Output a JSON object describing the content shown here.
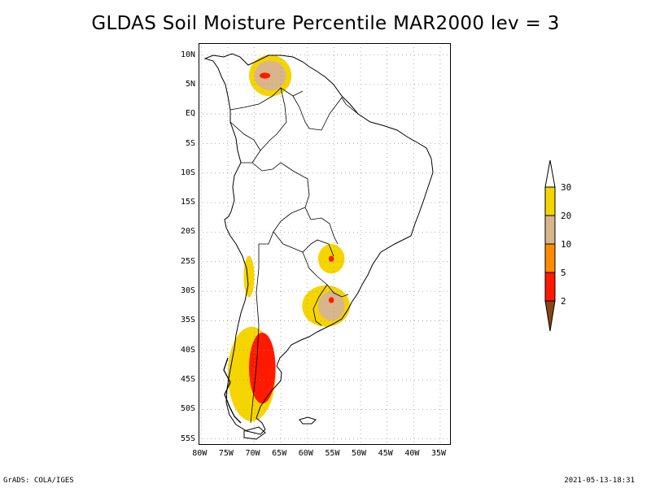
{
  "title": "GLDAS Soil Moisture Percentile MAR2000 lev = 3",
  "footer": {
    "left": "GrADS: COLA/IGES",
    "right": "2021-05-13-18:31"
  },
  "axes": {
    "lat_labels": [
      "10N",
      "5N",
      "EQ",
      "5S",
      "10S",
      "15S",
      "20S",
      "25S",
      "30S",
      "35S",
      "40S",
      "45S",
      "50S",
      "55S"
    ],
    "lon_labels": [
      "80W",
      "75W",
      "70W",
      "65W",
      "60W",
      "55W",
      "50W",
      "45W",
      "40W",
      "35W"
    ],
    "lat_values": [
      10,
      5,
      0,
      -5,
      -10,
      -15,
      -20,
      -25,
      -30,
      -35,
      -40,
      -45,
      -50,
      -55
    ],
    "lon_values": [
      -80,
      -75,
      -70,
      -65,
      -60,
      -55,
      -50,
      -45,
      -40,
      -35
    ],
    "lat_range": [
      -56,
      12
    ],
    "lon_range": [
      -80.5,
      -33
    ],
    "grid": true
  },
  "legend": {
    "placement": "right",
    "levels": [
      "30",
      "20",
      "10",
      "5",
      "2"
    ],
    "colors": {
      "above_30": "#ffffff",
      "20_30": "#f5d500",
      "10_20": "#d9b58c",
      "5_10": "#ff8c00",
      "2_5": "#ff1a00",
      "below_2": "#8b4513"
    }
  },
  "chart_data": {
    "type": "heatmap",
    "title": "GLDAS Soil Moisture Percentile MAR2000 lev = 3",
    "xlabel": "",
    "ylabel": "",
    "xlim": [
      -80.5,
      -33
    ],
    "ylim": [
      -56,
      12
    ],
    "regions": [
      {
        "category": "20_30",
        "lon": [
          -71,
          -63
        ],
        "lat": [
          3,
          10
        ]
      },
      {
        "category": "10_20",
        "lon": [
          -70,
          -64
        ],
        "lat": [
          4,
          9
        ]
      },
      {
        "category": "2_5",
        "lon": [
          -69,
          -67
        ],
        "lat": [
          6,
          7
        ]
      },
      {
        "category": "20_30",
        "lon": [
          -58,
          -53
        ],
        "lat": [
          -27,
          -22
        ]
      },
      {
        "category": "2_5",
        "lon": [
          -56,
          -55
        ],
        "lat": [
          -25,
          -24
        ]
      },
      {
        "category": "20_30",
        "lon": [
          -61,
          -52
        ],
        "lat": [
          -36,
          -29
        ]
      },
      {
        "category": "10_20",
        "lon": [
          -58,
          -53
        ],
        "lat": [
          -35,
          -30
        ]
      },
      {
        "category": "2_5",
        "lon": [
          -56,
          -55
        ],
        "lat": [
          -32,
          -31
        ]
      },
      {
        "category": "20_30",
        "lon": [
          -75,
          -66
        ],
        "lat": [
          -52,
          -36
        ]
      },
      {
        "category": "2_5",
        "lon": [
          -71,
          -66
        ],
        "lat": [
          -49,
          -37
        ]
      },
      {
        "category": "20_30",
        "lon": [
          -72,
          -70
        ],
        "lat": [
          -31,
          -24
        ]
      }
    ]
  }
}
